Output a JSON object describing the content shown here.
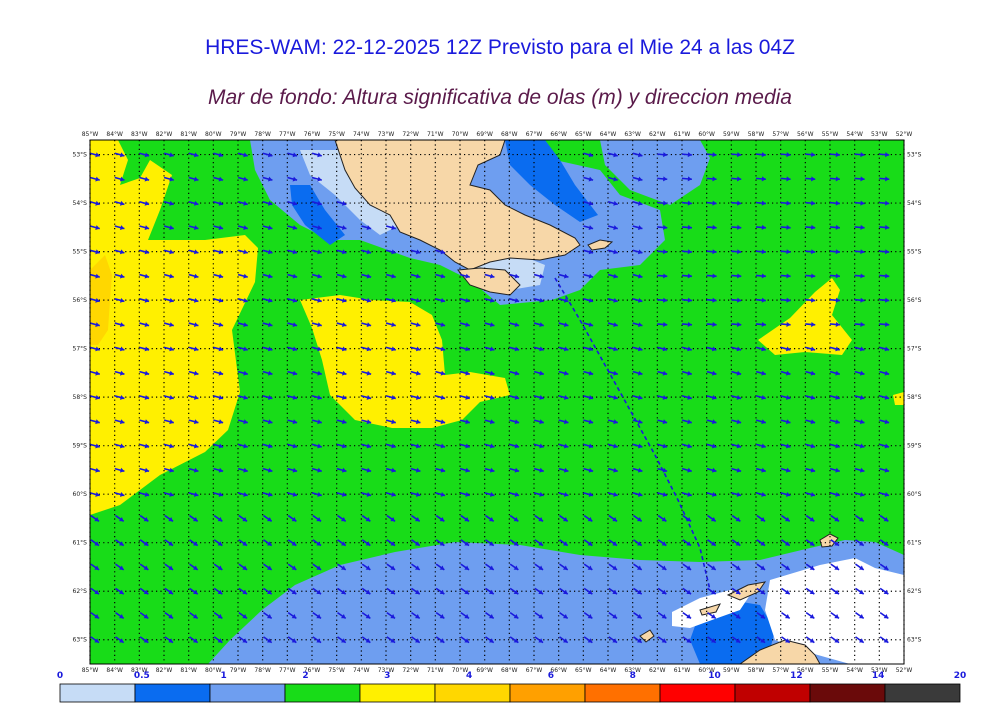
{
  "title": "HRES-WAM: 22-12-2025 12Z Previsto para el Mie 24 a las 04Z",
  "subtitle": "Mar de fondo: Altura significativa de olas (m) y direccion media",
  "map": {
    "lon_min": -85,
    "lon_max": -52,
    "lat_min": -63.5,
    "lat_max": -52.7,
    "lon_ticks": [
      "85°W",
      "84°W",
      "83°W",
      "82°W",
      "81°W",
      "80°W",
      "79°W",
      "78°W",
      "77°W",
      "76°W",
      "75°W",
      "74°W",
      "73°W",
      "72°W",
      "71°W",
      "70°W",
      "69°W",
      "68°W",
      "67°W",
      "66°W",
      "65°W",
      "64°W",
      "63°W",
      "62°W",
      "61°W",
      "60°W",
      "59°W",
      "58°W",
      "57°W",
      "56°W",
      "55°W",
      "54°W",
      "53°W",
      "52°W"
    ],
    "lat_ticks": [
      "53°S",
      "54°S",
      "55°S",
      "56°S",
      "57°S",
      "58°S",
      "59°S",
      "60°S",
      "61°S",
      "62°S",
      "63°S"
    ],
    "colors": {
      "land": "#f7d7a8",
      "coast": "#222222",
      "arrow": "#1a1adc",
      "grid": "#000000",
      "track": "#1a1adc"
    }
  },
  "colorbar": {
    "labels": [
      "0",
      "0.5",
      "1",
      "2",
      "3",
      "4",
      "6",
      "8",
      "10",
      "12",
      "14",
      "20"
    ],
    "colors": [
      "#c6dcf6",
      "#0a6cf0",
      "#6e9ef0",
      "#18dc18",
      "#fff000",
      "#ffd700",
      "#ffa000",
      "#ff7000",
      "#ff0000",
      "#c00000",
      "#6a0a0a",
      "#3a3a3a"
    ]
  }
}
